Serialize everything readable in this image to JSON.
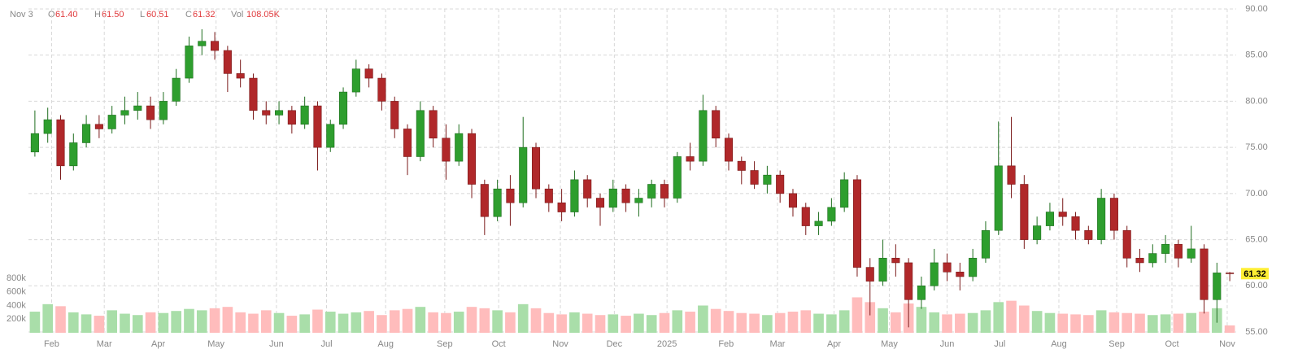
{
  "chart_data": {
    "type": "candlestick",
    "header": {
      "date": "Nov 3",
      "open_label": "O",
      "open": "61.40",
      "high_label": "H",
      "high": "61.50",
      "low_label": "L",
      "low": "60.51",
      "close_label": "C",
      "close": "61.32",
      "volume_label": "Vol",
      "volume": "108.05K"
    },
    "open": [
      74.5,
      76.5,
      78.0,
      73.0,
      75.5,
      77.5,
      77.0,
      78.5,
      79.0,
      79.5,
      78.0,
      80.0,
      82.5,
      86.0,
      86.5,
      85.5,
      83.0,
      82.5,
      79.0,
      78.5,
      79.0,
      77.5,
      79.5,
      75.0,
      77.5,
      81.0,
      83.5,
      82.5,
      80.0,
      77.0,
      74.0,
      79.0,
      76.0,
      73.5,
      76.5,
      71.0,
      67.5,
      70.5,
      69.0,
      75.0,
      70.5,
      69.0,
      68.0,
      71.5,
      69.5,
      68.5,
      70.5,
      69.0,
      69.5,
      71.0,
      69.5,
      74.0,
      73.5,
      79.0,
      76.0,
      73.5,
      72.5,
      71.0,
      72.0,
      70.0,
      68.5,
      66.5,
      67.0,
      68.5,
      71.5,
      62.0,
      60.5,
      63.0,
      62.5,
      58.5,
      60.0,
      62.5,
      61.5,
      61.0,
      63.0,
      66.0,
      73.0,
      71.0,
      65.0,
      66.5,
      68.0,
      67.5,
      66.0,
      65.0,
      69.5,
      66.0,
      63.0,
      62.5,
      63.5,
      64.5,
      63.0,
      64.0,
      58.5,
      61.4
    ],
    "high": [
      79.0,
      79.3,
      78.5,
      76.5,
      78.5,
      78.5,
      79.5,
      80.5,
      81.0,
      80.5,
      81.0,
      83.5,
      87.0,
      87.8,
      87.5,
      86.0,
      84.5,
      83.0,
      80.0,
      80.0,
      79.5,
      80.5,
      80.0,
      78.0,
      81.5,
      84.5,
      84.0,
      83.0,
      80.5,
      77.5,
      80.0,
      79.5,
      77.5,
      77.5,
      77.0,
      71.5,
      71.5,
      72.0,
      78.3,
      75.5,
      71.0,
      70.5,
      72.5,
      72.0,
      70.0,
      71.5,
      71.0,
      70.5,
      71.5,
      71.5,
      74.5,
      75.5,
      80.7,
      79.5,
      76.5,
      74.0,
      73.5,
      73.0,
      72.5,
      70.5,
      69.0,
      68.0,
      69.5,
      72.3,
      72.0,
      63.0,
      65.0,
      64.5,
      63.0,
      61.0,
      64.0,
      63.5,
      62.5,
      64.0,
      67.0,
      77.8,
      78.3,
      72.0,
      67.5,
      69.0,
      69.5,
      68.0,
      66.5,
      70.5,
      70.0,
      66.5,
      64.0,
      64.5,
      65.5,
      65.0,
      66.5,
      64.5,
      62.5,
      61.5
    ],
    "low": [
      74.0,
      75.5,
      71.5,
      72.5,
      75.0,
      76.0,
      76.5,
      77.5,
      78.0,
      77.0,
      77.5,
      79.5,
      82.0,
      85.0,
      84.5,
      81.0,
      81.5,
      78.0,
      77.5,
      77.5,
      76.5,
      77.0,
      72.5,
      74.5,
      77.0,
      80.5,
      81.5,
      79.0,
      76.0,
      72.0,
      73.5,
      75.0,
      71.5,
      73.0,
      69.5,
      65.5,
      67.0,
      66.5,
      68.5,
      69.5,
      68.0,
      67.0,
      67.5,
      68.5,
      66.5,
      68.0,
      68.0,
      67.5,
      68.5,
      68.5,
      69.0,
      72.5,
      73.0,
      75.0,
      72.5,
      71.0,
      70.5,
      70.0,
      69.0,
      67.5,
      65.5,
      65.5,
      66.5,
      68.0,
      61.0,
      56.8,
      60.0,
      61.0,
      55.5,
      57.5,
      59.5,
      60.5,
      59.5,
      60.5,
      62.5,
      65.5,
      69.5,
      64.0,
      64.5,
      66.0,
      66.5,
      65.0,
      64.5,
      64.5,
      65.0,
      62.0,
      61.5,
      62.0,
      62.5,
      62.0,
      62.5,
      57.0,
      56.0,
      60.51
    ],
    "close": [
      76.5,
      78.0,
      73.0,
      75.5,
      77.5,
      77.0,
      78.5,
      79.0,
      79.5,
      78.0,
      80.0,
      82.5,
      86.0,
      86.5,
      85.5,
      83.0,
      82.5,
      79.0,
      78.5,
      79.0,
      77.5,
      79.5,
      75.0,
      77.5,
      81.0,
      83.5,
      82.5,
      80.0,
      77.0,
      74.0,
      79.0,
      76.0,
      73.5,
      76.5,
      71.0,
      67.5,
      70.5,
      69.0,
      75.0,
      70.5,
      69.0,
      68.0,
      71.5,
      69.5,
      68.5,
      70.5,
      69.0,
      69.5,
      71.0,
      69.5,
      74.0,
      73.5,
      79.0,
      76.0,
      73.5,
      72.5,
      71.0,
      72.0,
      70.0,
      68.5,
      66.5,
      67.0,
      68.5,
      71.5,
      62.0,
      60.5,
      63.0,
      62.5,
      58.5,
      60.0,
      62.5,
      61.5,
      61.0,
      63.0,
      66.0,
      73.0,
      71.0,
      65.0,
      66.5,
      68.0,
      67.5,
      66.0,
      65.0,
      69.5,
      66.0,
      63.0,
      62.5,
      63.5,
      64.5,
      63.0,
      64.0,
      58.5,
      61.4,
      61.32
    ],
    "volume": [
      310000,
      420000,
      390000,
      300000,
      270000,
      250000,
      330000,
      280000,
      260000,
      300000,
      290000,
      320000,
      350000,
      330000,
      360000,
      380000,
      300000,
      280000,
      330000,
      290000,
      250000,
      270000,
      340000,
      310000,
      280000,
      300000,
      320000,
      260000,
      330000,
      350000,
      380000,
      300000,
      290000,
      310000,
      380000,
      360000,
      330000,
      300000,
      420000,
      360000,
      290000,
      270000,
      300000,
      280000,
      260000,
      270000,
      250000,
      280000,
      260000,
      290000,
      330000,
      310000,
      400000,
      350000,
      320000,
      290000,
      280000,
      260000,
      290000,
      310000,
      330000,
      280000,
      270000,
      330000,
      520000,
      450000,
      360000,
      300000,
      430000,
      380000,
      300000,
      270000,
      280000,
      290000,
      330000,
      450000,
      470000,
      400000,
      320000,
      290000,
      280000,
      270000,
      260000,
      330000,
      300000,
      290000,
      280000,
      260000,
      270000,
      280000,
      290000,
      310000,
      360000,
      108050
    ],
    "colors": {
      "up": "#2e9e2e",
      "up_wick": "#1f6e1f",
      "down": "#b0282a",
      "down_wick": "#7a1a1a",
      "up_volume": "#a9dea9",
      "down_volume": "#ffbcbc"
    },
    "xlim": [
      -0.5,
      93.5
    ],
    "xticks": [
      {
        "value": 1.3,
        "label": "Feb"
      },
      {
        "value": 5.4,
        "label": "Mar"
      },
      {
        "value": 9.6,
        "label": "Apr"
      },
      {
        "value": 14.1,
        "label": "May"
      },
      {
        "value": 18.8,
        "label": "Jun"
      },
      {
        "value": 22.7,
        "label": "Jul"
      },
      {
        "value": 27.3,
        "label": "Aug"
      },
      {
        "value": 31.9,
        "label": "Sep"
      },
      {
        "value": 36.1,
        "label": "Oct"
      },
      {
        "value": 40.9,
        "label": "Nov"
      },
      {
        "value": 45.1,
        "label": "Dec"
      },
      {
        "value": 49.2,
        "label": "2025"
      },
      {
        "value": 53.8,
        "label": "Feb"
      },
      {
        "value": 57.8,
        "label": "Mar"
      },
      {
        "value": 62.2,
        "label": "Apr"
      },
      {
        "value": 66.5,
        "label": "May"
      },
      {
        "value": 71.0,
        "label": "Jun"
      },
      {
        "value": 75.1,
        "label": "Jul"
      },
      {
        "value": 79.7,
        "label": "Aug"
      },
      {
        "value": 84.2,
        "label": "Sep"
      },
      {
        "value": 88.5,
        "label": "Oct"
      },
      {
        "value": 92.8,
        "label": "Nov"
      }
    ],
    "ylim": [
      55,
      90
    ],
    "yticks": [
      {
        "value": 55,
        "label": "55.00"
      },
      {
        "value": 60,
        "label": "60.00"
      },
      {
        "value": 65,
        "label": "65.00"
      },
      {
        "value": 70,
        "label": "70.00"
      },
      {
        "value": 75,
        "label": "75.00"
      },
      {
        "value": 80,
        "label": "80.00"
      },
      {
        "value": 85,
        "label": "85.00"
      },
      {
        "value": 90,
        "label": "90.00"
      }
    ],
    "volume_ylim": [
      0,
      800000
    ],
    "volume_ticks": [
      {
        "value": 200000,
        "label": "200k"
      },
      {
        "value": 400000,
        "label": "400k"
      },
      {
        "value": 600000,
        "label": "600k"
      },
      {
        "value": 800000,
        "label": "800k"
      }
    ],
    "last_price": {
      "value": 61.32,
      "label": "61.32"
    },
    "grid": true
  }
}
